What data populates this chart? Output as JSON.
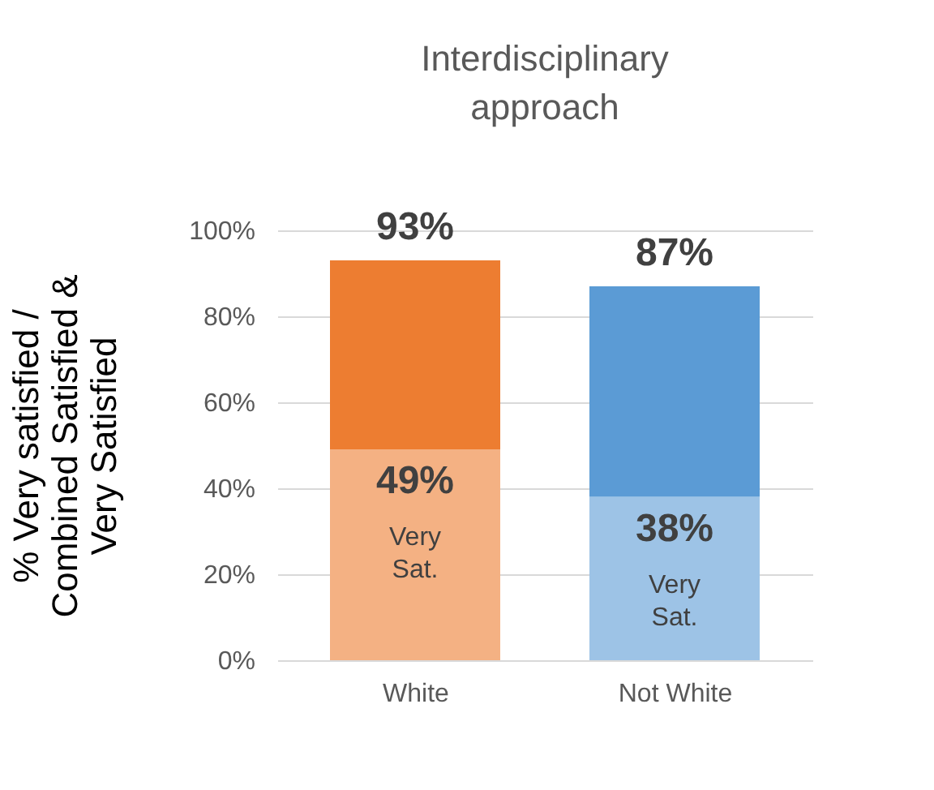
{
  "chart_data": {
    "type": "bar",
    "title": "Interdisciplinary approach",
    "ylabel": "% Very satisfied / Combined Satisfied & Very Satisfied",
    "categories": [
      "White",
      "Not White"
    ],
    "stacked": true,
    "series": [
      {
        "colors": [
          "#f4b183",
          "#9dc3e6"
        ],
        "values": [
          49,
          38
        ],
        "value_labels": [
          "49%",
          "38%"
        ]
      },
      {
        "colors": [
          "#ed7d31",
          "#5b9bd5"
        ],
        "values": [
          44,
          49
        ]
      }
    ],
    "totals": [
      "93%",
      "87%"
    ],
    "annotations": [
      "Very Sat.",
      "Very Sat."
    ],
    "ylim": [
      0,
      100
    ],
    "yticks": [
      {
        "value": 0,
        "label": "0%"
      },
      {
        "value": 20,
        "label": "20%"
      },
      {
        "value": 40,
        "label": "40%"
      },
      {
        "value": 60,
        "label": "60%"
      },
      {
        "value": 80,
        "label": "80%"
      },
      {
        "value": 100,
        "label": "100%"
      }
    ],
    "grid": "y"
  }
}
